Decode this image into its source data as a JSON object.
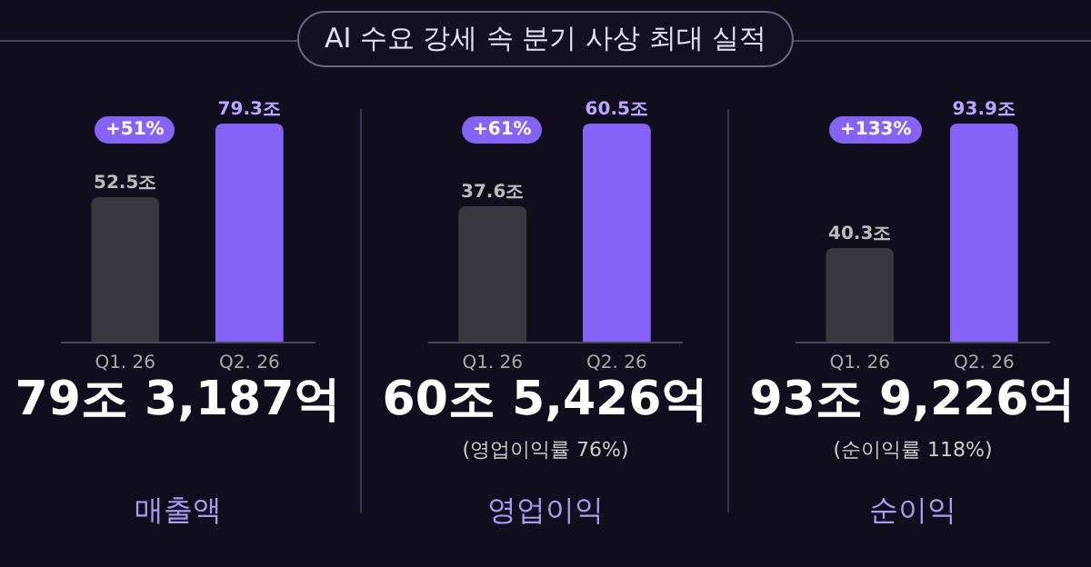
{
  "chart_data": [
    {
      "type": "other",
      "title": "AI 수요 강세 속 분기 사상 최대 실적"
    },
    {
      "type": "bar",
      "title": "매출액",
      "categories": [
        "Q1. 26",
        "Q2. 26"
      ],
      "values": [
        52.5,
        79.3
      ],
      "value_labels": [
        "52.5조",
        "79.3조"
      ],
      "colors": [
        "#3a383f",
        "#8463f7"
      ],
      "annotations": [
        "+51%",
        "79조 3,187억"
      ]
    },
    {
      "type": "bar",
      "title": "영업이익",
      "categories": [
        "Q1. 26",
        "Q2. 26"
      ],
      "values": [
        37.6,
        60.5
      ],
      "value_labels": [
        "37.6조",
        "60.5조"
      ],
      "colors": [
        "#3a383f",
        "#8463f7"
      ],
      "annotations": [
        "+61%",
        "60조 5,426억",
        "(영업이익률 76%)"
      ]
    },
    {
      "type": "bar",
      "title": "순이익",
      "categories": [
        "Q1. 26",
        "Q2. 26"
      ],
      "values": [
        40.3,
        93.9
      ],
      "value_labels": [
        "40.3조",
        "93.9조"
      ],
      "colors": [
        "#3a383f",
        "#8463f7"
      ],
      "annotations": [
        "+133%",
        "93조 9,226억",
        "(순이익률 118%)"
      ]
    }
  ]
}
